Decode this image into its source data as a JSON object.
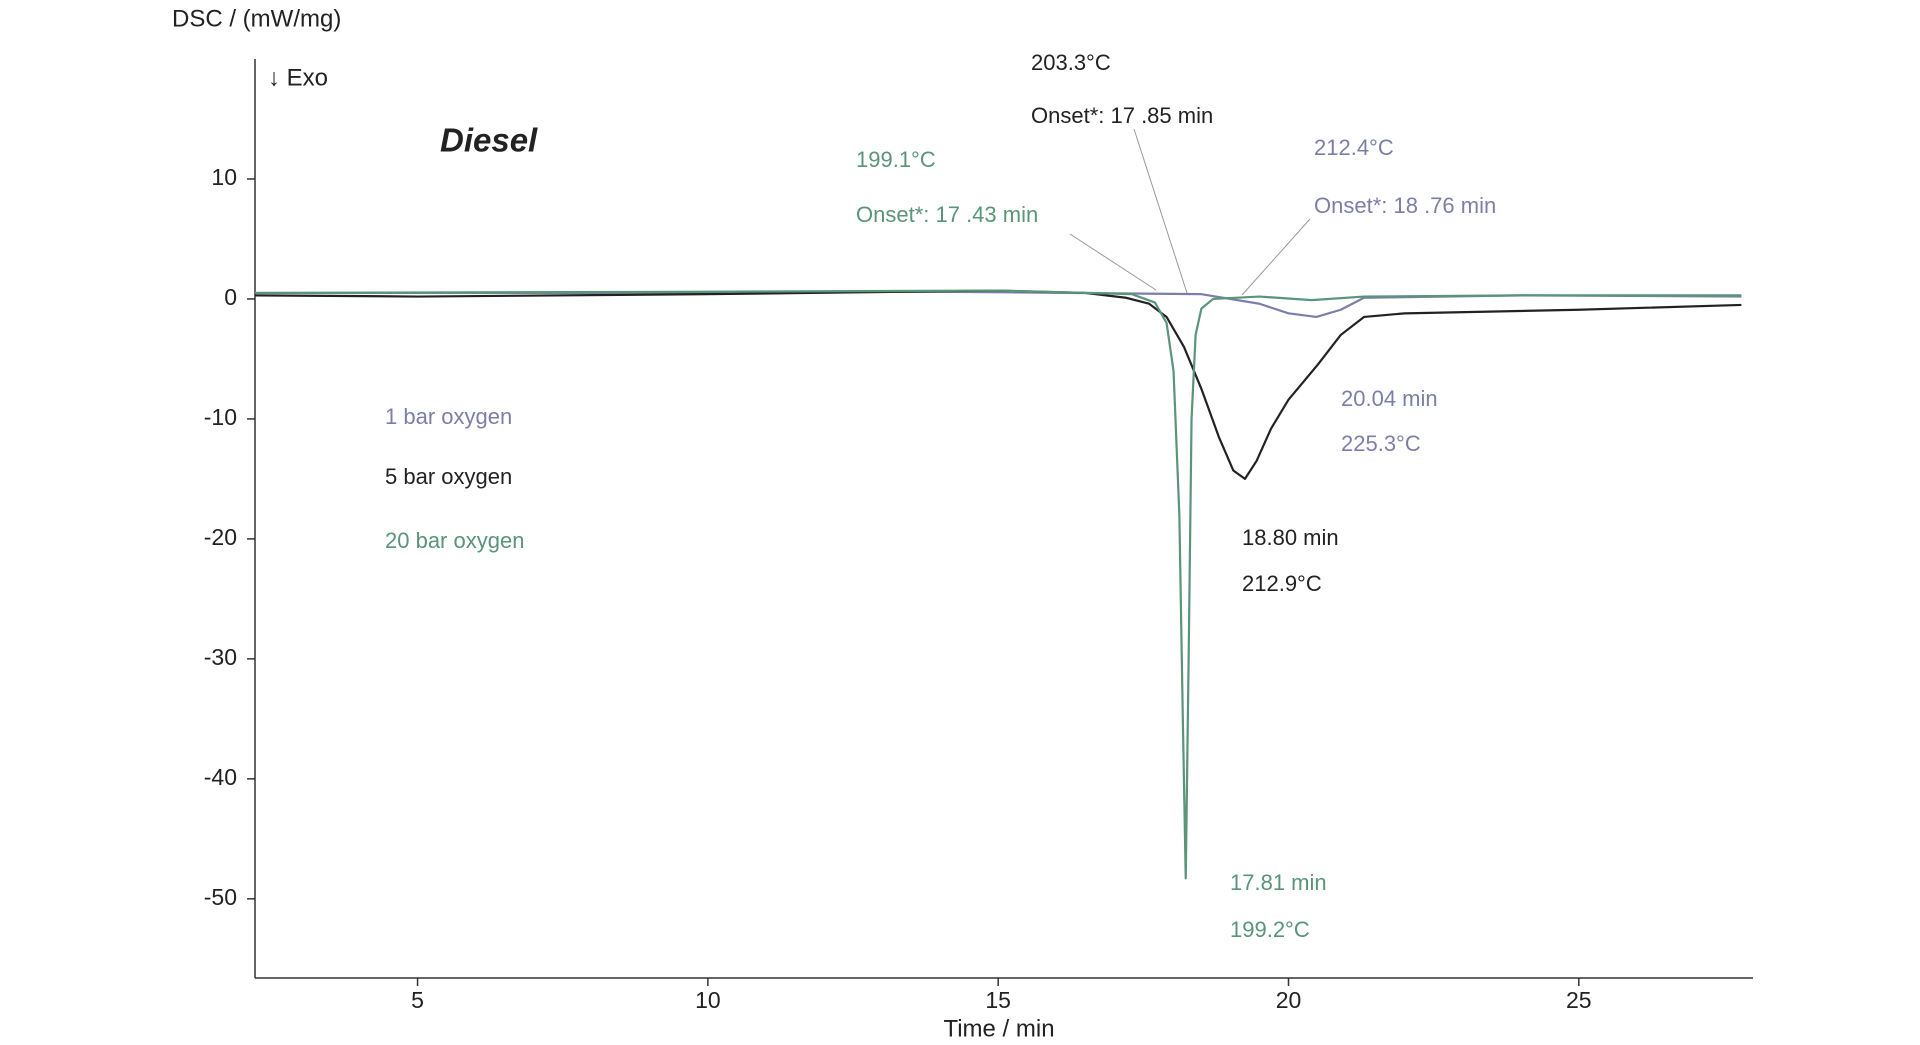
{
  "chart_data": {
    "type": "line",
    "title": "Diesel",
    "indicator": "↓ Exo",
    "y_label": "DSC / (mW/mg)",
    "x_label": "Time / min",
    "xlim": [
      2.2,
      28
    ],
    "ylim": [
      -56.6,
      20
    ],
    "xticks": [
      5,
      10,
      15,
      20,
      25
    ],
    "yticks": [
      10,
      0,
      -10,
      -20,
      -30,
      -40,
      -50
    ],
    "series": [
      {
        "name": "1 bar oxygen",
        "color": "#7b7fa8",
        "x": [
          2.2,
          8,
          14,
          18.5,
          19.5,
          20.0,
          20.48,
          20.9,
          21.3,
          24,
          27.8
        ],
        "values": [
          0.5,
          0.5,
          0.6,
          0.4,
          -0.4,
          -1.2,
          -1.5,
          -0.9,
          0.1,
          0.3,
          0.2
        ]
      },
      {
        "name": "5 bar oxygen",
        "color": "#222222",
        "x": [
          2.2,
          5,
          10,
          15,
          16.5,
          17.2,
          17.6,
          17.9,
          18.2,
          18.5,
          18.8,
          19.05,
          19.25,
          19.45,
          19.7,
          20.0,
          20.5,
          20.9,
          21.3,
          22,
          25,
          27.8
        ],
        "values": [
          0.3,
          0.2,
          0.4,
          0.7,
          0.5,
          0.1,
          -0.4,
          -1.5,
          -4,
          -7.5,
          -11.5,
          -14.3,
          -15,
          -13.5,
          -10.8,
          -8.4,
          -5.5,
          -3,
          -1.5,
          -1.2,
          -0.9,
          -0.5
        ]
      },
      {
        "name": "20 bar oxygen",
        "color": "#5a9479",
        "x": [
          2.2,
          10,
          15,
          17.3,
          17.7,
          17.9,
          18.02,
          18.12,
          18.18,
          18.23,
          18.28,
          18.33,
          18.4,
          18.5,
          18.7,
          19.5,
          20.4,
          21.3,
          24,
          27.8
        ],
        "values": [
          0.5,
          0.6,
          0.7,
          0.4,
          -0.3,
          -2,
          -6,
          -18,
          -35,
          -48.3,
          -30,
          -10,
          -3,
          -0.8,
          0,
          0.2,
          -0.1,
          0.2,
          0.3,
          0.3
        ]
      }
    ],
    "annotations": [
      {
        "text": "203.3°C",
        "color": "#222222"
      },
      {
        "text": "Onset*: 17 .85 min",
        "color": "#222222"
      },
      {
        "text": "199.1°C",
        "color": "#5a9479"
      },
      {
        "text": "Onset*: 17 .43 min",
        "color": "#5a9479"
      },
      {
        "text": "212.4°C",
        "color": "#7b7fa8"
      },
      {
        "text": "Onset*: 18 .76 min",
        "color": "#7b7fa8"
      },
      {
        "text": "20.04 min",
        "color": "#7b7fa8"
      },
      {
        "text": "225.3°C",
        "color": "#7b7fa8"
      },
      {
        "text": "18.80 min",
        "color": "#222222"
      },
      {
        "text": "212.9°C",
        "color": "#222222"
      },
      {
        "text": "17.81 min",
        "color": "#5a9479"
      },
      {
        "text": "199.2°C",
        "color": "#5a9479"
      }
    ]
  }
}
